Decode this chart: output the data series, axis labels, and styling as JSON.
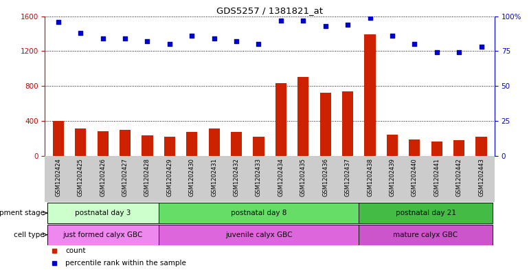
{
  "title": "GDS5257 / 1381821_at",
  "samples": [
    "GSM1202424",
    "GSM1202425",
    "GSM1202426",
    "GSM1202427",
    "GSM1202428",
    "GSM1202429",
    "GSM1202430",
    "GSM1202431",
    "GSM1202432",
    "GSM1202433",
    "GSM1202434",
    "GSM1202435",
    "GSM1202436",
    "GSM1202437",
    "GSM1202438",
    "GSM1202439",
    "GSM1202440",
    "GSM1202441",
    "GSM1202442",
    "GSM1202443"
  ],
  "counts": [
    400,
    310,
    280,
    300,
    230,
    220,
    270,
    310,
    270,
    215,
    830,
    900,
    720,
    740,
    1390,
    240,
    185,
    165,
    175,
    215
  ],
  "percentile_ranks": [
    96,
    88,
    84,
    84,
    82,
    80,
    86,
    84,
    82,
    80,
    97,
    97,
    93,
    94,
    99,
    86,
    80,
    74,
    74,
    78
  ],
  "ylim_left": [
    0,
    1600
  ],
  "ylim_right": [
    0,
    100
  ],
  "yticks_left": [
    0,
    400,
    800,
    1200,
    1600
  ],
  "yticks_right": [
    0,
    25,
    50,
    75,
    100
  ],
  "bar_color": "#cc2200",
  "scatter_color": "#0000cc",
  "gray_bg": "#cccccc",
  "groups": [
    {
      "label": "postnatal day 3",
      "start": 0,
      "end": 5,
      "color": "#ccffcc"
    },
    {
      "label": "postnatal day 8",
      "start": 5,
      "end": 14,
      "color": "#66dd66"
    },
    {
      "label": "postnatal day 21",
      "start": 14,
      "end": 20,
      "color": "#44bb44"
    }
  ],
  "cell_types": [
    {
      "label": "just formed calyx GBC",
      "start": 0,
      "end": 5,
      "color": "#ee88ee"
    },
    {
      "label": "juvenile calyx GBC",
      "start": 5,
      "end": 14,
      "color": "#dd66dd"
    },
    {
      "label": "mature calyx GBC",
      "start": 14,
      "end": 20,
      "color": "#cc55cc"
    }
  ],
  "dev_stage_label": "development stage",
  "cell_type_label": "cell type",
  "legend_count_label": "count",
  "legend_pct_label": "percentile rank within the sample",
  "tick_label_color_left": "#cc0000",
  "tick_label_color_right": "#0000cc"
}
